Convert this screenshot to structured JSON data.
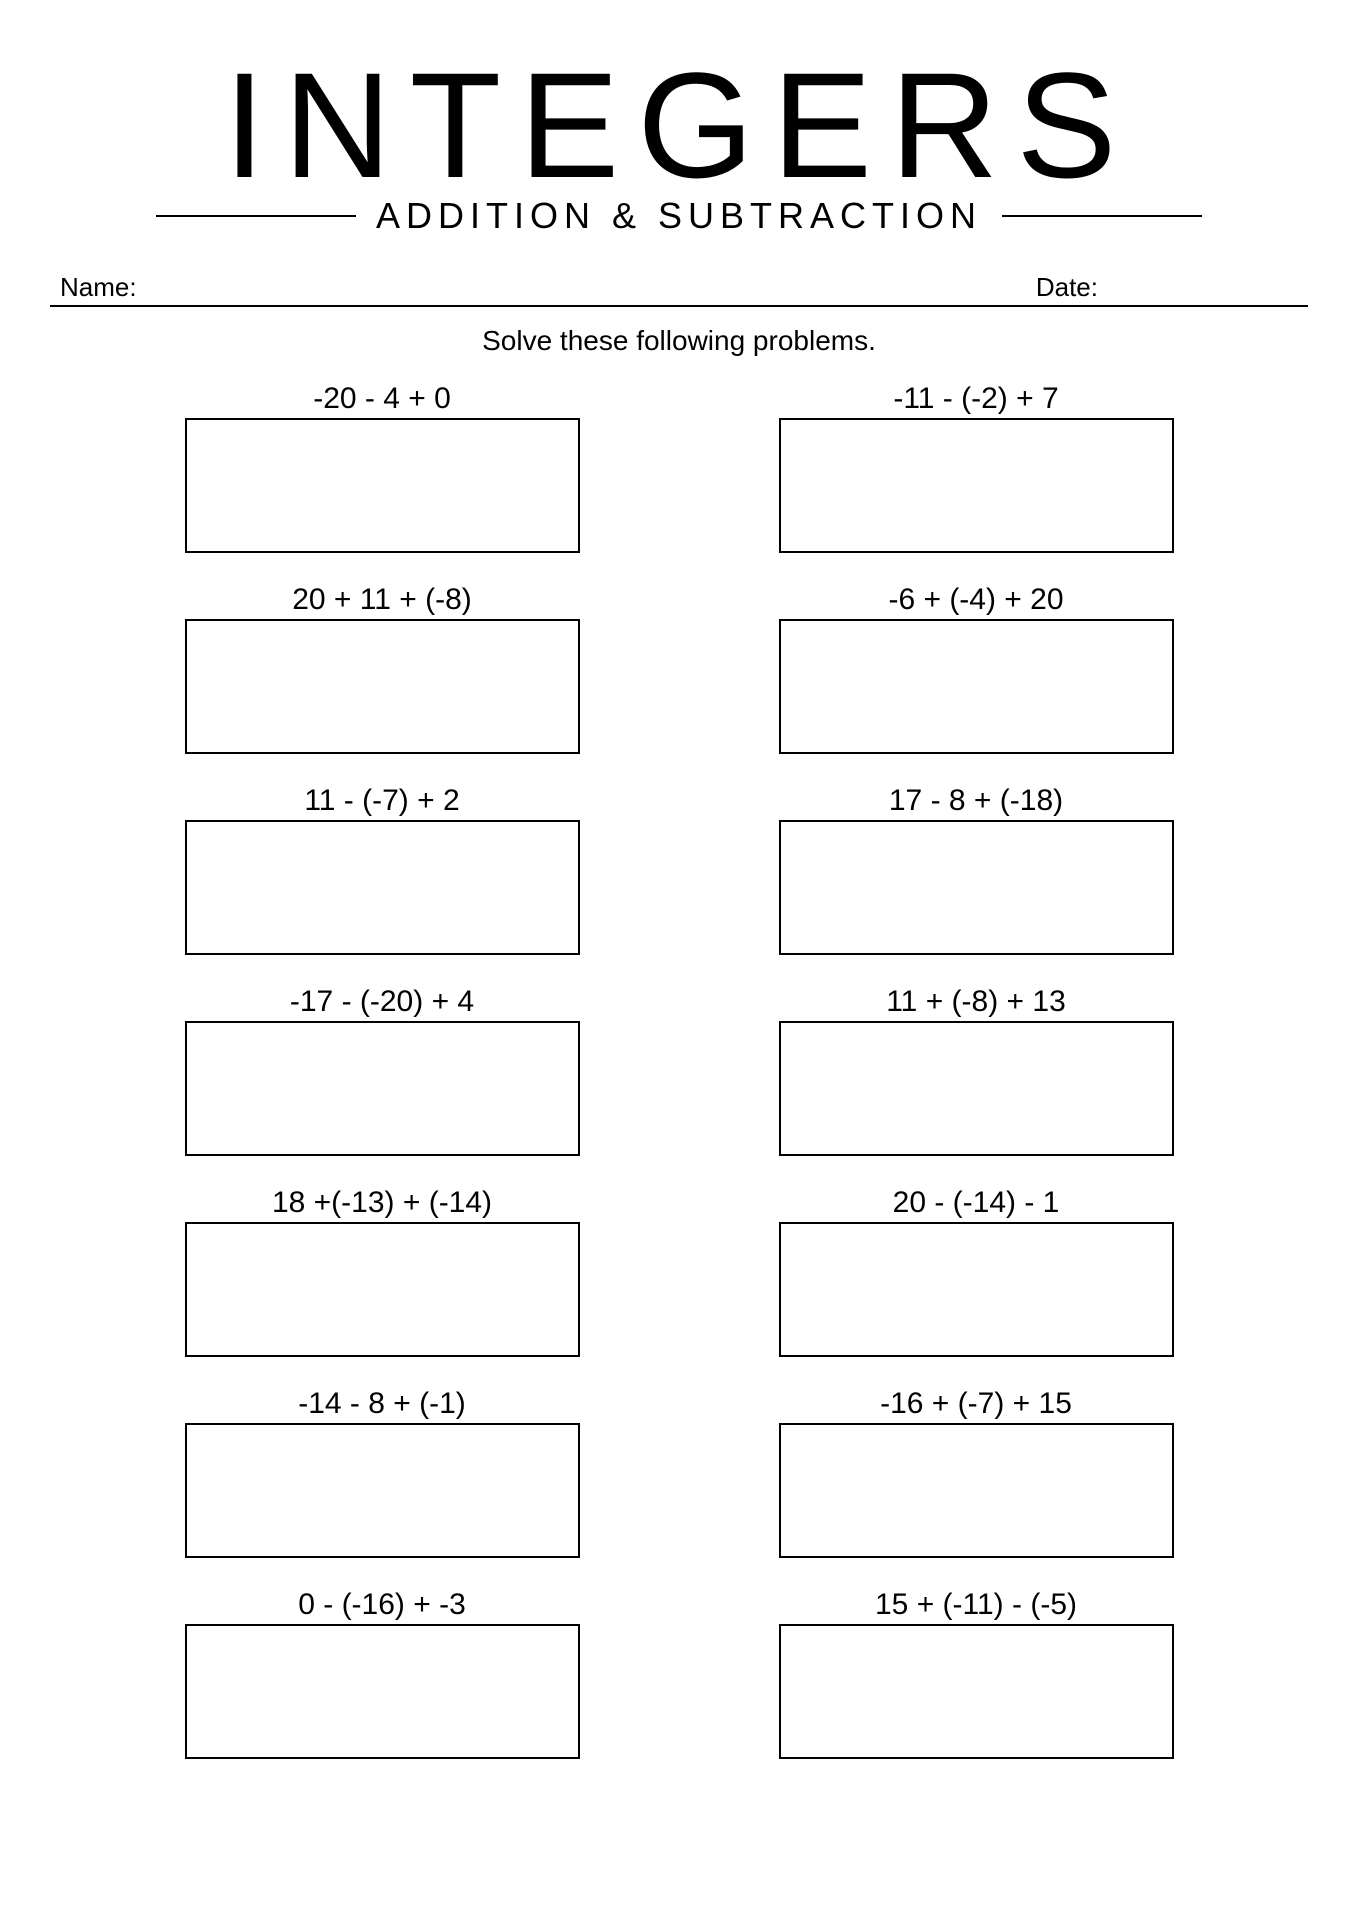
{
  "title": "INTEGERS",
  "subtitle": "ADDITION & SUBTRACTION",
  "name_label": "Name:",
  "date_label": "Date:",
  "instructions": "Solve these following problems.",
  "colors": {
    "background": "#ffffff",
    "text": "#000000",
    "border": "#000000",
    "line": "#000000"
  },
  "typography": {
    "title_fontsize": 150,
    "title_letterspacing": 18,
    "subtitle_fontsize": 36,
    "subtitle_letterspacing": 6,
    "label_fontsize": 26,
    "instructions_fontsize": 28,
    "problem_fontsize": 30
  },
  "layout": {
    "columns": 2,
    "rows": 7,
    "answer_box_width": 395,
    "answer_box_height": 135,
    "answer_box_border_width": 2.5,
    "column_gap": 130,
    "row_gap": 30
  },
  "problems": [
    {
      "expression": "-20 - 4 + 0"
    },
    {
      "expression": "-11 - (-2) + 7"
    },
    {
      "expression": "20 + 11 + (-8)"
    },
    {
      "expression": "-6 + (-4) + 20"
    },
    {
      "expression": "11 - (-7) + 2"
    },
    {
      "expression": "17 - 8 + (-18)"
    },
    {
      "expression": "-17 - (-20) + 4"
    },
    {
      "expression": "11 + (-8) + 13"
    },
    {
      "expression": "18 +(-13) + (-14)"
    },
    {
      "expression": "20 - (-14) - 1"
    },
    {
      "expression": "-14 - 8 + (-1)"
    },
    {
      "expression": "-16 + (-7) + 15"
    },
    {
      "expression": "0 - (-16) + -3"
    },
    {
      "expression": "15 + (-11) - (-5)"
    }
  ]
}
